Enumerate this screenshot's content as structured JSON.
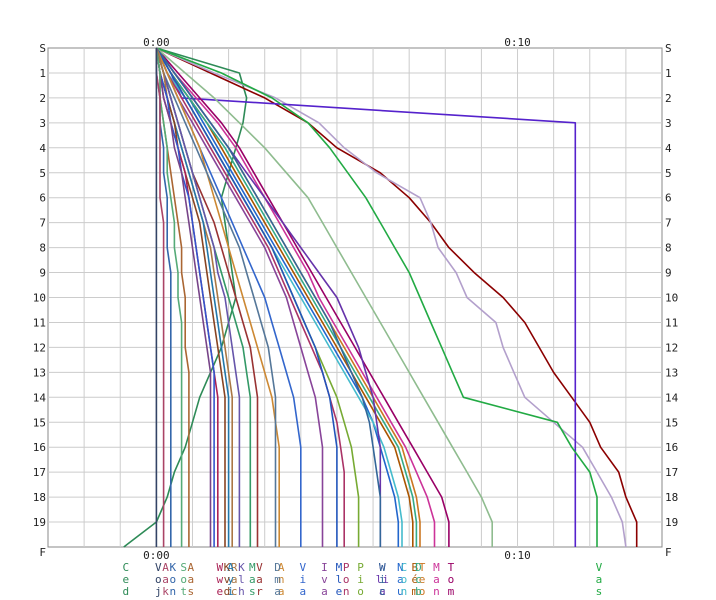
{
  "chart_data": {
    "type": "line",
    "title": "",
    "x_tick_labels": [
      "0:00",
      "0:10"
    ],
    "x_range_minutes": [
      -3,
      14
    ],
    "y_tick_labels": [
      "S",
      "1",
      "2",
      "3",
      "4",
      "5",
      "6",
      "7",
      "8",
      "9",
      "10",
      "11",
      "12",
      "13",
      "14",
      "15",
      "16",
      "17",
      "18",
      "19"
    ],
    "bottom_label": "F",
    "stations": [
      0,
      1,
      2,
      3,
      4,
      5,
      6,
      7,
      8,
      9,
      10,
      11,
      12,
      13,
      14,
      15,
      16,
      17,
      18,
      19,
      20
    ],
    "grid": true,
    "legend_placement": "bottom",
    "series": [
      {
        "color": "#2e8b57",
        "values": [
          0.0,
          2.3,
          2.5,
          2.4,
          2.2,
          2.0,
          1.8,
          1.9,
          2.0,
          2.1,
          2.2,
          2.0,
          1.8,
          1.5,
          1.2,
          1.0,
          0.8,
          0.5,
          0.3,
          0.0,
          -0.9
        ],
        "legend": [
          "C",
          "e",
          "d"
        ]
      },
      {
        "color": "#8b0000",
        "values": [
          0.0,
          1.5,
          3.0,
          4.2,
          5.0,
          6.2,
          7.0,
          7.6,
          8.1,
          8.8,
          9.6,
          10.2,
          10.6,
          11.0,
          11.5,
          12.0,
          12.3,
          12.8,
          13.0,
          13.3,
          13.3
        ],
        "legend": [
          "",
          "",
          ""
        ]
      },
      {
        "color": "#b3a0cc",
        "values": [
          0.0,
          1.6,
          3.3,
          4.5,
          5.2,
          6.1,
          7.3,
          7.6,
          7.8,
          8.3,
          8.6,
          9.4,
          9.6,
          9.9,
          10.2,
          11.0,
          11.8,
          12.2,
          12.6,
          12.9,
          13.0
        ],
        "legend": [
          "",
          "",
          ""
        ]
      },
      {
        "color": "#5522cc",
        "values": [
          0.0,
          0.4,
          0.7,
          11.6,
          11.6,
          11.6,
          11.6,
          11.6,
          11.6,
          11.6,
          11.6,
          11.6,
          11.6,
          11.6,
          11.6,
          11.6,
          11.6,
          11.6,
          11.6,
          11.6,
          11.6
        ],
        "legend": [
          "",
          "",
          ""
        ]
      },
      {
        "color": "#22aa44",
        "values": [
          0.0,
          1.8,
          3.2,
          4.2,
          4.8,
          5.3,
          5.8,
          6.2,
          6.6,
          7.0,
          7.3,
          7.6,
          7.9,
          8.2,
          8.5,
          11.1,
          11.5,
          12.0,
          12.2,
          12.2,
          12.2
        ],
        "legend": [
          "V",
          "a",
          "s"
        ]
      },
      {
        "color": "#990066",
        "values": [
          0.0,
          0.6,
          1.2,
          1.8,
          2.3,
          2.7,
          3.1,
          3.5,
          3.9,
          4.3,
          4.7,
          5.1,
          5.5,
          5.9,
          6.3,
          6.7,
          7.1,
          7.5,
          7.9,
          8.1,
          8.1
        ],
        "legend": [
          "T",
          "o",
          "m"
        ]
      },
      {
        "color": "#8fbc8f",
        "values": [
          0.0,
          0.8,
          1.6,
          2.3,
          3.0,
          3.6,
          4.2,
          4.6,
          5.0,
          5.4,
          5.8,
          6.2,
          6.6,
          7.0,
          7.4,
          7.8,
          8.2,
          8.6,
          9.0,
          9.3,
          9.3
        ],
        "legend": [
          "",
          "",
          ""
        ]
      },
      {
        "color": "#cc3399",
        "values": [
          0.0,
          0.5,
          1.1,
          1.7,
          2.2,
          2.6,
          3.0,
          3.4,
          3.8,
          4.2,
          4.5,
          4.9,
          5.3,
          5.7,
          6.1,
          6.5,
          6.9,
          7.2,
          7.5,
          7.7,
          7.7
        ],
        "legend": [
          "M",
          "a",
          "n"
        ]
      },
      {
        "color": "#cc7722",
        "values": [
          0.0,
          0.5,
          1.0,
          1.5,
          2.0,
          2.4,
          2.8,
          3.2,
          3.6,
          4.0,
          4.4,
          4.8,
          5.2,
          5.6,
          6.0,
          6.4,
          6.8,
          7.0,
          7.2,
          7.3,
          7.3
        ],
        "legend": [
          "T",
          "e",
          "o"
        ]
      },
      {
        "color": "#2266cc",
        "values": [
          0.0,
          0.4,
          0.9,
          1.3,
          1.7,
          2.1,
          2.5,
          2.9,
          3.3,
          3.7,
          4.1,
          4.5,
          4.9,
          5.3,
          5.7,
          6.0,
          6.2,
          6.4,
          6.6,
          6.7,
          6.7
        ],
        "legend": [
          "N",
          "a",
          "u"
        ]
      },
      {
        "color": "#44bbcc",
        "values": [
          0.0,
          0.3,
          0.8,
          1.2,
          1.6,
          2.0,
          2.4,
          2.8,
          3.2,
          3.6,
          4.0,
          4.4,
          4.8,
          5.2,
          5.6,
          6.0,
          6.3,
          6.5,
          6.7,
          6.8,
          6.8
        ],
        "legend": [
          "C",
          "o",
          "n"
        ]
      },
      {
        "color": "#aa5500",
        "values": [
          0.0,
          0.4,
          0.9,
          1.4,
          1.8,
          2.2,
          2.6,
          3.0,
          3.4,
          3.8,
          4.2,
          4.6,
          5.0,
          5.4,
          5.8,
          6.2,
          6.6,
          6.8,
          7.0,
          7.1,
          7.1
        ],
        "legend": [
          "B",
          "é",
          "m"
        ]
      },
      {
        "color": "#33aa88",
        "values": [
          0.0,
          0.4,
          0.9,
          1.4,
          1.9,
          2.3,
          2.7,
          3.1,
          3.5,
          3.9,
          4.3,
          4.7,
          5.1,
          5.5,
          5.9,
          6.3,
          6.7,
          6.9,
          7.1,
          7.2,
          7.2
        ],
        "legend": [
          "D",
          "c",
          "b"
        ]
      },
      {
        "color": "#6633aa",
        "values": [
          0.0,
          0.5,
          1.0,
          1.5,
          2.0,
          2.5,
          3.0,
          3.5,
          4.0,
          4.5,
          5.0,
          5.3,
          5.6,
          5.8,
          6.0,
          6.1,
          6.2,
          6.2,
          6.2,
          6.2,
          6.2
        ],
        "legend": [
          "W",
          "li",
          "a"
        ]
      },
      {
        "color": "#336699",
        "values": [
          0.0,
          0.5,
          1.0,
          1.5,
          2.0,
          2.4,
          2.8,
          3.2,
          3.6,
          4.0,
          4.4,
          4.8,
          5.1,
          5.4,
          5.7,
          5.9,
          6.0,
          6.1,
          6.2,
          6.2,
          6.2
        ],
        "legend": [
          "W",
          "i",
          "c"
        ]
      },
      {
        "color": "#77aa33",
        "values": [
          0.0,
          0.4,
          0.8,
          1.2,
          1.6,
          2.0,
          2.4,
          2.8,
          3.2,
          3.5,
          3.8,
          4.1,
          4.4,
          4.7,
          5.0,
          5.2,
          5.4,
          5.5,
          5.6,
          5.6,
          5.6
        ],
        "legend": [
          "P",
          "i",
          "o"
        ]
      },
      {
        "color": "#aa3366",
        "values": [
          0.0,
          0.3,
          0.7,
          1.1,
          1.5,
          1.9,
          2.3,
          2.7,
          3.1,
          3.4,
          3.7,
          4.0,
          4.3,
          4.6,
          4.8,
          5.0,
          5.1,
          5.2,
          5.2,
          5.2,
          5.2
        ],
        "legend": [
          "P",
          "o",
          "n"
        ]
      },
      {
        "color": "#2255bb",
        "values": [
          0.0,
          0.4,
          0.8,
          1.2,
          1.6,
          2.0,
          2.4,
          2.8,
          3.2,
          3.5,
          3.8,
          4.1,
          4.4,
          4.6,
          4.8,
          4.9,
          5.0,
          5.0,
          5.0,
          5.0,
          5.0
        ],
        "legend": [
          "M",
          "l",
          "e"
        ]
      },
      {
        "color": "#884499",
        "values": [
          0.0,
          0.3,
          0.6,
          1.0,
          1.4,
          1.8,
          2.2,
          2.6,
          3.0,
          3.3,
          3.6,
          3.8,
          4.0,
          4.2,
          4.4,
          4.5,
          4.6,
          4.6,
          4.6,
          4.6,
          4.6
        ],
        "legend": [
          "I",
          "v",
          "a"
        ]
      },
      {
        "color": "#3366cc",
        "values": [
          0.0,
          0.3,
          0.6,
          0.9,
          1.2,
          1.5,
          1.8,
          2.1,
          2.4,
          2.7,
          3.0,
          3.2,
          3.4,
          3.6,
          3.8,
          3.9,
          4.0,
          4.0,
          4.0,
          4.0,
          4.0
        ],
        "legend": [
          "V",
          "i",
          "a"
        ]
      },
      {
        "color": "#cc8833",
        "values": [
          0.0,
          0.3,
          0.6,
          0.9,
          1.2,
          1.4,
          1.6,
          1.8,
          2.0,
          2.2,
          2.4,
          2.6,
          2.8,
          3.0,
          3.2,
          3.3,
          3.4,
          3.4,
          3.4,
          3.4,
          3.4
        ],
        "legend": [
          "A",
          "n",
          "a"
        ]
      },
      {
        "color": "#557799",
        "values": [
          0.0,
          0.2,
          0.5,
          0.8,
          1.1,
          1.4,
          1.7,
          2.0,
          2.3,
          2.5,
          2.7,
          2.9,
          3.1,
          3.2,
          3.3,
          3.3,
          3.3,
          3.3,
          3.3,
          3.3,
          3.3
        ],
        "legend": [
          "D",
          "m",
          "a"
        ]
      },
      {
        "color": "#993333",
        "values": [
          0.0,
          0.2,
          0.4,
          0.6,
          0.8,
          1.0,
          1.3,
          1.6,
          1.8,
          2.0,
          2.2,
          2.4,
          2.6,
          2.7,
          2.8,
          2.8,
          2.8,
          2.8,
          2.8,
          2.8,
          2.8
        ],
        "legend": [
          "V",
          "a",
          "r"
        ]
      },
      {
        "color": "#339966",
        "values": [
          0.0,
          0.2,
          0.4,
          0.6,
          0.8,
          1.0,
          1.2,
          1.4,
          1.6,
          1.8,
          2.0,
          2.2,
          2.4,
          2.5,
          2.6,
          2.6,
          2.6,
          2.6,
          2.6,
          2.6,
          2.6
        ],
        "legend": [
          "M",
          "a",
          "s"
        ]
      },
      {
        "color": "#6655aa",
        "values": [
          0.0,
          0.2,
          0.4,
          0.6,
          0.8,
          1.0,
          1.2,
          1.4,
          1.6,
          1.7,
          1.9,
          2.0,
          2.1,
          2.2,
          2.3,
          2.3,
          2.3,
          2.3,
          2.3,
          2.3,
          2.3
        ],
        "legend": [
          "K",
          "l",
          "h"
        ]
      },
      {
        "color": "#aa7744",
        "values": [
          0.0,
          0.2,
          0.3,
          0.5,
          0.7,
          0.9,
          1.1,
          1.3,
          1.5,
          1.6,
          1.7,
          1.8,
          1.9,
          2.0,
          2.1,
          2.1,
          2.1,
          2.1,
          2.1,
          2.1,
          2.1
        ],
        "legend": [
          "R",
          "a",
          "c"
        ]
      },
      {
        "color": "#2277aa",
        "values": [
          0.0,
          0.1,
          0.3,
          0.5,
          0.7,
          0.9,
          1.1,
          1.3,
          1.4,
          1.5,
          1.6,
          1.7,
          1.8,
          1.9,
          2.0,
          2.0,
          2.0,
          2.0,
          2.0,
          2.0,
          2.0
        ],
        "legend": [
          "A",
          "y",
          "i"
        ]
      },
      {
        "color": "#884422",
        "values": [
          0.0,
          0.1,
          0.3,
          0.5,
          0.6,
          0.8,
          1.0,
          1.2,
          1.3,
          1.4,
          1.5,
          1.6,
          1.7,
          1.8,
          1.9,
          1.9,
          1.9,
          1.9,
          1.9,
          1.9,
          1.9
        ],
        "legend": [
          "K",
          "v",
          "d"
        ]
      },
      {
        "color": "#aa2255",
        "values": [
          0.0,
          0.1,
          0.2,
          0.4,
          0.6,
          0.8,
          0.9,
          1.0,
          1.1,
          1.2,
          1.3,
          1.4,
          1.5,
          1.6,
          1.7,
          1.7,
          1.7,
          1.7,
          1.7,
          1.7,
          1.7
        ],
        "legend": [
          "W",
          "w",
          "e"
        ]
      },
      {
        "color": "#3355cc",
        "values": [
          0.0,
          0.1,
          0.3,
          0.4,
          0.6,
          0.7,
          0.9,
          1.0,
          1.1,
          1.2,
          1.3,
          1.4,
          1.5,
          1.6,
          1.6,
          1.6,
          1.6,
          1.6,
          1.6,
          1.6,
          1.6
        ],
        "legend": [
          "",
          "",
          ""
        ]
      },
      {
        "color": "#774488",
        "values": [
          0.0,
          0.1,
          0.2,
          0.4,
          0.5,
          0.7,
          0.8,
          0.9,
          1.0,
          1.1,
          1.2,
          1.3,
          1.4,
          1.5,
          1.5,
          1.5,
          1.5,
          1.5,
          1.5,
          1.5,
          1.5
        ],
        "legend": [
          "",
          "",
          ""
        ]
      },
      {
        "color": "#aa6633",
        "values": [
          0.0,
          0.1,
          0.1,
          0.2,
          0.3,
          0.4,
          0.5,
          0.6,
          0.7,
          0.7,
          0.8,
          0.8,
          0.8,
          0.9,
          0.9,
          0.9,
          0.9,
          0.9,
          0.9,
          0.9,
          0.9
        ],
        "legend": [
          "A",
          "a",
          "s"
        ]
      },
      {
        "color": "#55aa77",
        "values": [
          0.0,
          0.1,
          0.1,
          0.2,
          0.3,
          0.3,
          0.4,
          0.5,
          0.5,
          0.6,
          0.6,
          0.7,
          0.7,
          0.7,
          0.7,
          0.7,
          0.7,
          0.7,
          0.7,
          0.7,
          0.7
        ],
        "legend": [
          "S",
          "o",
          "t"
        ]
      },
      {
        "color": "#3366aa",
        "values": [
          0.0,
          0.0,
          0.1,
          0.1,
          0.2,
          0.2,
          0.3,
          0.3,
          0.3,
          0.4,
          0.4,
          0.4,
          0.4,
          0.4,
          0.4,
          0.4,
          0.4,
          0.4,
          0.4,
          0.4,
          0.4
        ],
        "legend": [
          "K",
          "o",
          "n"
        ]
      },
      {
        "color": "#aa4466",
        "values": [
          0.0,
          0.0,
          0.1,
          0.1,
          0.1,
          0.1,
          0.1,
          0.2,
          0.2,
          0.2,
          0.2,
          0.2,
          0.2,
          0.2,
          0.2,
          0.2,
          0.2,
          0.2,
          0.2,
          0.2,
          0.2
        ],
        "legend": [
          "A",
          "a",
          "k"
        ]
      },
      {
        "color": "#334466",
        "values": [
          0.0,
          0.0,
          0.0,
          0.0,
          0.0,
          0.0,
          0.0,
          0.0,
          0.0,
          0.0,
          0.0,
          0.0,
          0.0,
          0.0,
          0.0,
          0.0,
          0.0,
          0.0,
          0.0,
          0.0,
          0.0
        ],
        "legend": [
          "V",
          "o",
          "j"
        ]
      }
    ]
  }
}
